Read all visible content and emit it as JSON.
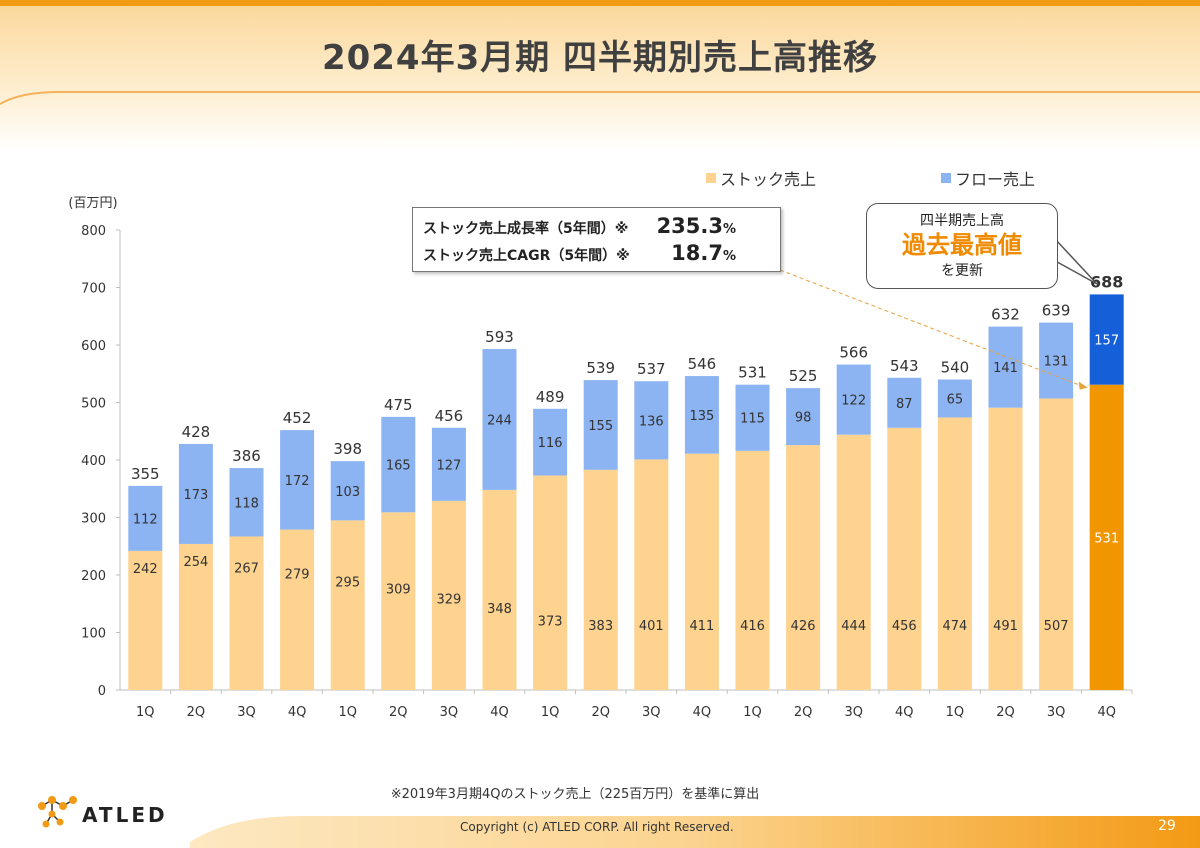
{
  "page": {
    "title": "2024年3月期 四半期別売上高推移",
    "footnote": "※2019年3月期4Qのストック売上（225百万円）を基準に算出",
    "copyright": "Copyright (c)  ATLED CORP. All right Reserved.",
    "page_number": "29",
    "logo_text": "ATLED",
    "kpi_box": {
      "row1_label": "ストック売上成長率（5年間）※",
      "row1_value": "235.3",
      "row1_unit": "%",
      "row2_label": "ストック売上CAGR（5年間）※",
      "row2_value": "18.7",
      "row2_unit": "%"
    },
    "callout": {
      "line1": "四半期売上高",
      "line2": "過去最高値",
      "line3": "を更新"
    }
  },
  "colors": {
    "stock": "#fdd38f",
    "flow": "#8db4f2",
    "stock_highlight": "#f29600",
    "flow_highlight": "#1560d9",
    "accent_orange": "#f08a00"
  },
  "chart_data": {
    "type": "bar",
    "stacked": true,
    "ylabel": "(百万円)",
    "ylim": [
      0,
      800
    ],
    "yticks": [
      0,
      100,
      200,
      300,
      400,
      500,
      600,
      700,
      800
    ],
    "categories": [
      "1Q",
      "2Q",
      "3Q",
      "4Q",
      "1Q",
      "2Q",
      "3Q",
      "4Q",
      "1Q",
      "2Q",
      "3Q",
      "4Q",
      "1Q",
      "2Q",
      "3Q",
      "4Q",
      "1Q",
      "2Q",
      "3Q",
      "4Q"
    ],
    "series": [
      {
        "name": "ストック売上",
        "values": [
          242,
          254,
          267,
          279,
          295,
          309,
          329,
          348,
          373,
          383,
          401,
          411,
          416,
          426,
          444,
          456,
          474,
          491,
          507,
          531
        ]
      },
      {
        "name": "フロー売上",
        "values": [
          112,
          173,
          118,
          172,
          103,
          165,
          127,
          244,
          116,
          155,
          136,
          135,
          115,
          98,
          122,
          87,
          65,
          141,
          131,
          157
        ]
      }
    ],
    "totals": [
      355,
      428,
      386,
      452,
      398,
      475,
      456,
      593,
      489,
      539,
      537,
      546,
      531,
      525,
      566,
      543,
      540,
      632,
      639,
      688
    ],
    "highlight_index": 19,
    "legend": [
      "ストック売上",
      "フロー売上"
    ]
  }
}
